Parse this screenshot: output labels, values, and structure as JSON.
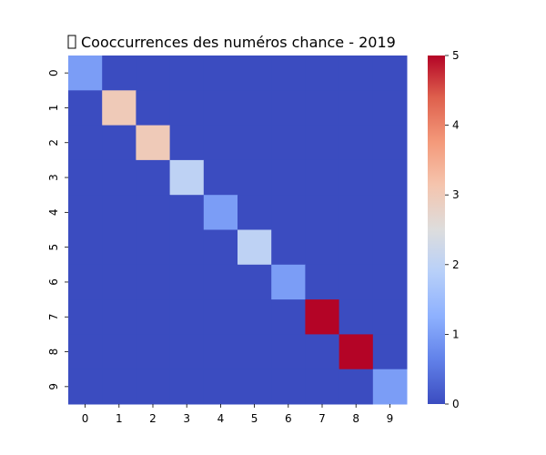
{
  "chart_data": {
    "type": "heatmap",
    "title": "Cooccurrences des numéros chance - 2019",
    "title_icon": "missing-glyph-box",
    "x_categories": [
      "0",
      "1",
      "2",
      "3",
      "4",
      "5",
      "6",
      "7",
      "8",
      "9"
    ],
    "y_categories": [
      "0",
      "1",
      "2",
      "3",
      "4",
      "5",
      "6",
      "7",
      "8",
      "9"
    ],
    "values": [
      [
        1,
        0,
        0,
        0,
        0,
        0,
        0,
        0,
        0,
        0
      ],
      [
        0,
        3,
        0,
        0,
        0,
        0,
        0,
        0,
        0,
        0
      ],
      [
        0,
        0,
        3,
        0,
        0,
        0,
        0,
        0,
        0,
        0
      ],
      [
        0,
        0,
        0,
        2,
        0,
        0,
        0,
        0,
        0,
        0
      ],
      [
        0,
        0,
        0,
        0,
        1,
        0,
        0,
        0,
        0,
        0
      ],
      [
        0,
        0,
        0,
        0,
        0,
        2,
        0,
        0,
        0,
        0
      ],
      [
        0,
        0,
        0,
        0,
        0,
        0,
        1,
        0,
        0,
        0
      ],
      [
        0,
        0,
        0,
        0,
        0,
        0,
        0,
        5,
        0,
        0
      ],
      [
        0,
        0,
        0,
        0,
        0,
        0,
        0,
        0,
        5,
        0
      ],
      [
        0,
        0,
        0,
        0,
        0,
        0,
        0,
        0,
        0,
        1
      ]
    ],
    "colorbar": {
      "min": 0,
      "max": 5,
      "ticks": [
        "0",
        "1",
        "2",
        "3",
        "4",
        "5"
      ]
    },
    "colormap": "coolwarm",
    "grid": false,
    "legend": "right"
  }
}
